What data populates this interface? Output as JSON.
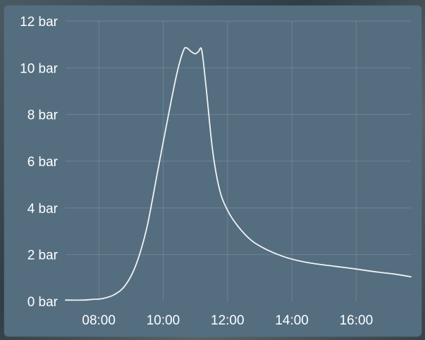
{
  "chart_data": {
    "type": "line",
    "title": "",
    "xlabel": "",
    "ylabel": "",
    "y_unit": "bar",
    "x_ticks": [
      "08:00",
      "10:00",
      "12:00",
      "14:00",
      "16:00"
    ],
    "y_ticks": [
      "0 bar",
      "2 bar",
      "4 bar",
      "6 bar",
      "8 bar",
      "10 bar",
      "12 bar"
    ],
    "xlim": [
      "06:58",
      "17:42"
    ],
    "ylim": [
      0,
      12
    ],
    "grid": true,
    "line_color": "#f2f2f2",
    "background_color": "#546e80",
    "series": [
      {
        "name": "",
        "points": [
          [
            "06:58",
            0.05
          ],
          [
            "07:30",
            0.05
          ],
          [
            "07:48",
            0.08
          ],
          [
            "08:08",
            0.12
          ],
          [
            "08:30",
            0.3
          ],
          [
            "08:50",
            0.7
          ],
          [
            "09:10",
            1.6
          ],
          [
            "09:30",
            3.2
          ],
          [
            "09:50",
            5.6
          ],
          [
            "10:10",
            8.0
          ],
          [
            "10:26",
            9.8
          ],
          [
            "10:38",
            10.75
          ],
          [
            "10:44",
            10.85
          ],
          [
            "10:52",
            10.7
          ],
          [
            "11:00",
            10.6
          ],
          [
            "11:06",
            10.7
          ],
          [
            "11:12",
            10.75
          ],
          [
            "11:20",
            9.2
          ],
          [
            "11:32",
            6.5
          ],
          [
            "11:45",
            4.8
          ],
          [
            "12:00",
            3.9
          ],
          [
            "12:20",
            3.2
          ],
          [
            "12:45",
            2.6
          ],
          [
            "13:10",
            2.25
          ],
          [
            "13:40",
            1.95
          ],
          [
            "14:10",
            1.75
          ],
          [
            "14:45",
            1.6
          ],
          [
            "15:20",
            1.5
          ],
          [
            "16:00",
            1.38
          ],
          [
            "16:40",
            1.25
          ],
          [
            "17:10",
            1.17
          ],
          [
            "17:42",
            1.05
          ]
        ]
      }
    ]
  }
}
